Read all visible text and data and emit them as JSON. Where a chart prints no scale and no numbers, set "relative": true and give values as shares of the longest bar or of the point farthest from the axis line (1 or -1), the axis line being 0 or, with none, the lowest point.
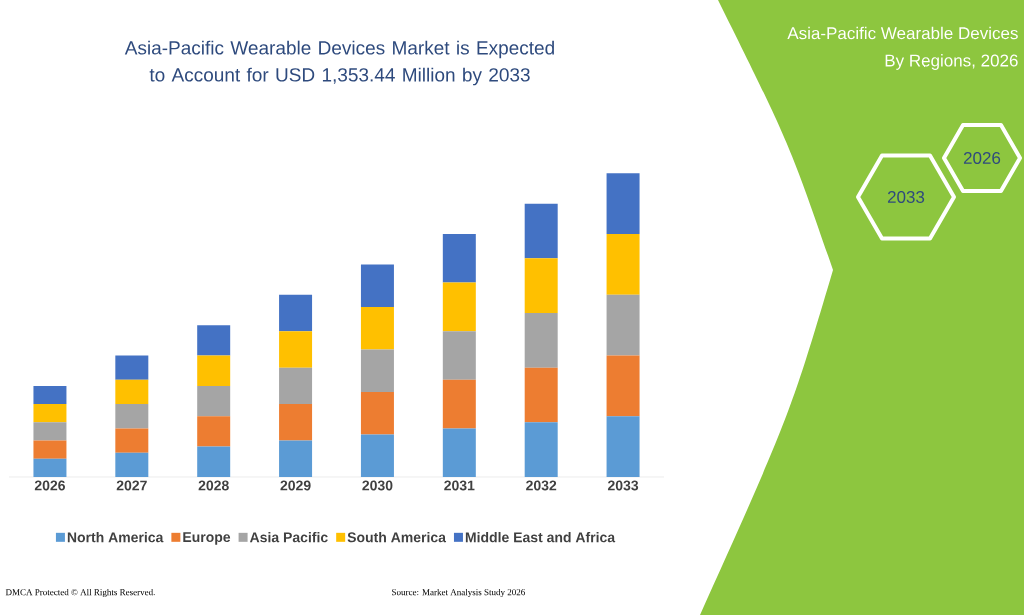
{
  "chart_data": {
    "type": "bar",
    "stacked": true,
    "relative": true,
    "title": "Asia-Pacific Wearable Devices Market is Expected to Account for USD 1,353.44 Million by 2033",
    "categories": [
      "2026",
      "2027",
      "2028",
      "2029",
      "2030",
      "2031",
      "2032",
      "2033"
    ],
    "series": [
      {
        "name": "North America",
        "color": "#5b9bd5",
        "values": [
          0.06,
          0.08,
          0.1,
          0.12,
          0.14,
          0.16,
          0.18,
          0.2
        ]
      },
      {
        "name": "Europe",
        "color": "#ed7d31",
        "values": [
          0.06,
          0.08,
          0.1,
          0.12,
          0.14,
          0.16,
          0.18,
          0.2
        ]
      },
      {
        "name": "Asia Pacific",
        "color": "#a5a5a5",
        "values": [
          0.06,
          0.08,
          0.1,
          0.12,
          0.14,
          0.16,
          0.18,
          0.2
        ]
      },
      {
        "name": "South America",
        "color": "#ffc000",
        "values": [
          0.06,
          0.08,
          0.1,
          0.12,
          0.14,
          0.16,
          0.18,
          0.2
        ]
      },
      {
        "name": "Middle East and Africa",
        "color": "#4472c4",
        "values": [
          0.06,
          0.08,
          0.1,
          0.12,
          0.14,
          0.16,
          0.18,
          0.2
        ]
      }
    ],
    "legend": "bottom",
    "annotations": [
      "Asia-Pacific Wearable Devices",
      "By Regions, 2026",
      "2026",
      "2033",
      "DMCA Protected © All Rights Reserved.",
      "Source: Market Analysis Study 2026"
    ]
  }
}
